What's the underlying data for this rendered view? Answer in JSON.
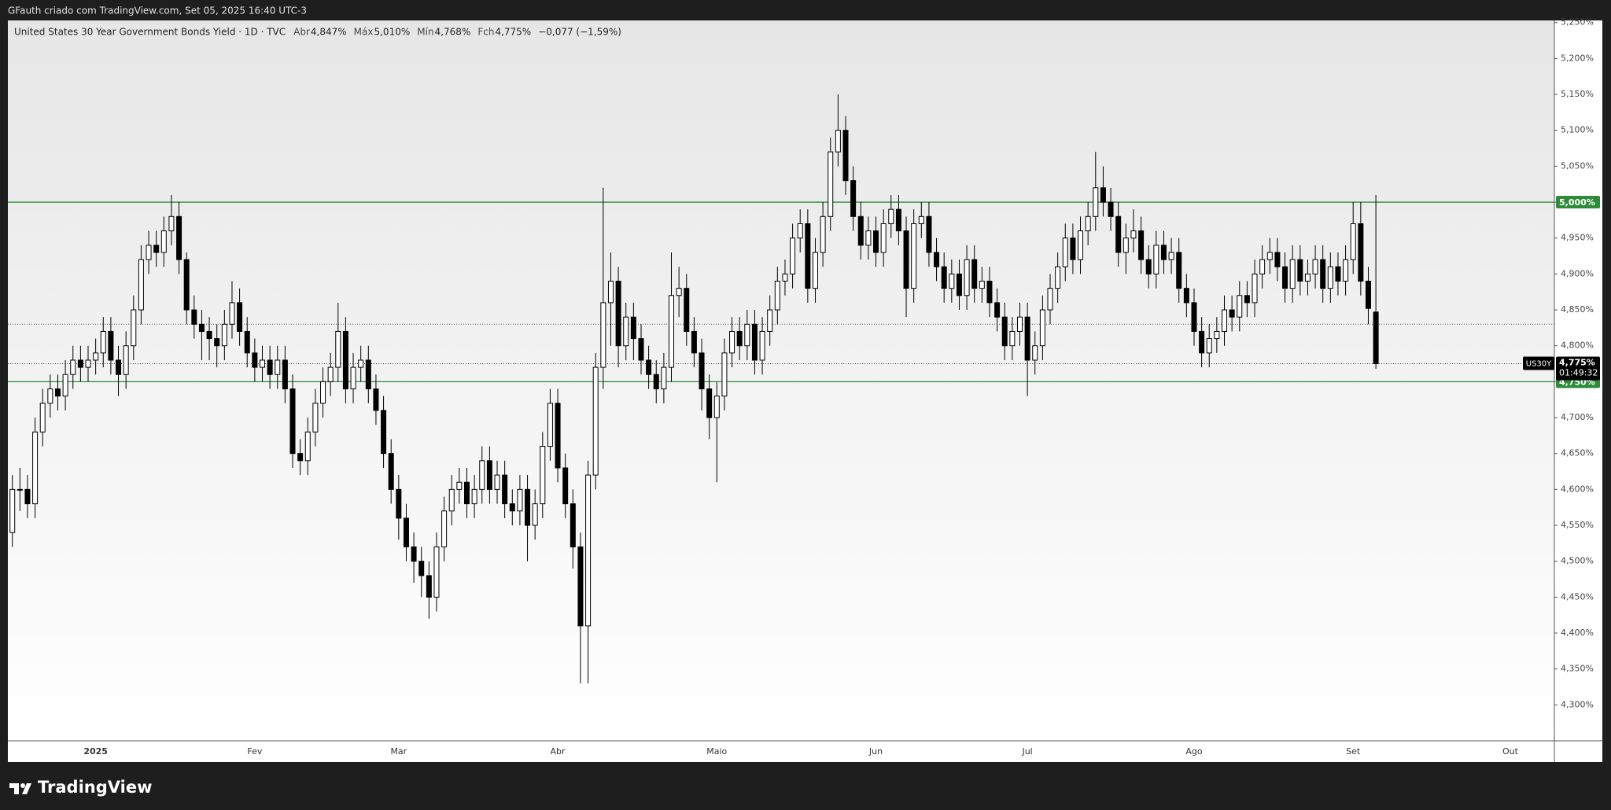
{
  "chart_data": {
    "type": "candlestick",
    "subtitle": "GFauth criado com TradingView.com, Set 05, 2025 16:40 UTC-3",
    "title": "United States 30 Year Government Bonds Yield · 1D · TVC",
    "legend_values": [
      "Abr",
      "4,847%",
      "Máx",
      "5,010%",
      "Mín",
      "4,768%",
      "Fch",
      "4,775%",
      "−0,077 (−1,59%)"
    ],
    "brand": "TradingView",
    "categories": [
      null,
      null,
      null,
      null,
      null,
      null,
      null,
      null,
      null,
      null,
      null,
      "2025",
      null,
      null,
      null,
      null,
      null,
      null,
      null,
      null,
      null,
      null,
      null,
      null,
      null,
      null,
      null,
      null,
      null,
      null,
      null,
      null,
      "Fev",
      null,
      null,
      null,
      null,
      null,
      null,
      null,
      null,
      null,
      null,
      null,
      null,
      null,
      null,
      null,
      null,
      null,
      null,
      "Mar",
      null,
      null,
      null,
      null,
      null,
      null,
      null,
      null,
      null,
      null,
      null,
      null,
      null,
      null,
      null,
      null,
      null,
      null,
      null,
      null,
      "Abr",
      null,
      null,
      null,
      null,
      null,
      null,
      null,
      null,
      null,
      null,
      null,
      null,
      null,
      null,
      null,
      null,
      null,
      null,
      null,
      null,
      "Maio",
      null,
      null,
      null,
      null,
      null,
      null,
      null,
      null,
      null,
      null,
      null,
      null,
      null,
      null,
      null,
      null,
      null,
      null,
      null,
      null,
      "Jun",
      null,
      null,
      null,
      null,
      null,
      null,
      null,
      null,
      null,
      null,
      null,
      null,
      null,
      null,
      null,
      null,
      null,
      null,
      null,
      "Jul",
      null,
      null,
      null,
      null,
      null,
      null,
      null,
      null,
      null,
      null,
      null,
      null,
      null,
      null,
      null,
      null,
      null,
      null,
      null,
      null,
      null,
      "Ago",
      null,
      null,
      null,
      null,
      null,
      null,
      null,
      null,
      null,
      null,
      null,
      null,
      null,
      null,
      null,
      null,
      null,
      null,
      null,
      null,
      "Set",
      null,
      null,
      null
    ],
    "future_x_label": "Out",
    "open": [
      4.54,
      4.6,
      4.6,
      4.58,
      4.68,
      4.72,
      4.74,
      4.73,
      4.76,
      4.78,
      4.77,
      4.78,
      4.79,
      4.82,
      4.78,
      4.76,
      4.8,
      4.85,
      4.92,
      4.94,
      4.93,
      4.96,
      4.98,
      4.92,
      4.85,
      4.83,
      4.82,
      4.81,
      4.8,
      4.83,
      4.86,
      4.82,
      4.79,
      4.77,
      4.78,
      4.76,
      4.78,
      4.74,
      4.65,
      4.64,
      4.68,
      4.72,
      4.75,
      4.77,
      4.82,
      4.74,
      4.77,
      4.78,
      4.74,
      4.71,
      4.65,
      4.6,
      4.56,
      4.52,
      4.5,
      4.48,
      4.45,
      4.52,
      4.57,
      4.6,
      4.61,
      4.58,
      4.6,
      4.64,
      4.6,
      4.62,
      4.58,
      4.57,
      4.6,
      4.55,
      4.58,
      4.66,
      4.72,
      4.63,
      4.58,
      4.52,
      4.41,
      4.62,
      4.77,
      4.86,
      4.89,
      4.8,
      4.84,
      4.81,
      4.78,
      4.76,
      4.74,
      4.77,
      4.87,
      4.88,
      4.82,
      4.79,
      4.74,
      4.7,
      4.73,
      4.79,
      4.82,
      4.8,
      4.83,
      4.78,
      4.82,
      4.85,
      4.89,
      4.9,
      4.95,
      4.97,
      4.88,
      4.93,
      4.98,
      5.07,
      5.1,
      5.03,
      4.98,
      4.94,
      4.96,
      4.93,
      4.97,
      4.99,
      4.96,
      4.88,
      4.97,
      4.98,
      4.93,
      4.91,
      4.88,
      4.9,
      4.87,
      4.92,
      4.88,
      4.89,
      4.86,
      4.84,
      4.8,
      4.82,
      4.84,
      4.78,
      4.8,
      4.85,
      4.88,
      4.91,
      4.95,
      4.92,
      4.96,
      4.98,
      5.02,
      5.0,
      4.98,
      4.93,
      4.95,
      4.96,
      4.92,
      4.9,
      4.94,
      4.92,
      4.93,
      4.88,
      4.86,
      4.82,
      4.79,
      4.81,
      4.82,
      4.85,
      4.84,
      4.87,
      4.86,
      4.9,
      4.92,
      4.93,
      4.91,
      4.88,
      4.92,
      4.89,
      4.9,
      4.92,
      4.88,
      4.91,
      4.89,
      4.92,
      4.97,
      4.89,
      4.847
    ],
    "high": [
      4.62,
      4.63,
      4.62,
      4.7,
      4.74,
      4.76,
      4.76,
      4.78,
      4.8,
      4.8,
      4.8,
      4.81,
      4.84,
      4.84,
      4.8,
      4.82,
      4.87,
      4.94,
      4.96,
      4.96,
      4.98,
      5.01,
      5.0,
      4.93,
      4.87,
      4.85,
      4.84,
      4.83,
      4.85,
      4.89,
      4.88,
      4.84,
      4.81,
      4.8,
      4.8,
      4.8,
      4.8,
      4.76,
      4.67,
      4.7,
      4.74,
      4.77,
      4.79,
      4.86,
      4.84,
      4.79,
      4.8,
      4.8,
      4.76,
      4.73,
      4.67,
      4.62,
      4.58,
      4.54,
      4.52,
      4.5,
      4.54,
      4.59,
      4.62,
      4.63,
      4.63,
      4.62,
      4.66,
      4.66,
      4.64,
      4.64,
      4.6,
      4.62,
      4.62,
      4.6,
      4.68,
      4.74,
      4.74,
      4.65,
      4.6,
      4.54,
      4.64,
      4.79,
      5.02,
      4.93,
      4.91,
      4.86,
      4.86,
      4.83,
      4.8,
      4.78,
      4.79,
      4.93,
      4.91,
      4.9,
      4.84,
      4.81,
      4.76,
      4.75,
      4.81,
      4.84,
      4.84,
      4.85,
      4.85,
      4.84,
      4.87,
      4.91,
      4.92,
      4.97,
      4.99,
      4.99,
      4.95,
      5.0,
      5.09,
      5.15,
      5.12,
      5.05,
      5.0,
      4.98,
      4.98,
      4.99,
      5.01,
      5.01,
      4.98,
      4.99,
      5.0,
      5.0,
      4.95,
      4.93,
      4.92,
      4.92,
      4.94,
      4.94,
      4.91,
      4.91,
      4.88,
      4.86,
      4.84,
      4.86,
      4.86,
      4.82,
      4.87,
      4.9,
      4.93,
      4.97,
      4.97,
      4.98,
      5.0,
      5.07,
      5.05,
      5.02,
      5.0,
      4.97,
      4.99,
      4.98,
      4.94,
      4.96,
      4.96,
      4.95,
      4.95,
      4.9,
      4.88,
      4.84,
      4.83,
      4.84,
      4.87,
      4.87,
      4.89,
      4.89,
      4.92,
      4.94,
      4.95,
      4.95,
      4.93,
      4.94,
      4.94,
      4.92,
      4.94,
      4.94,
      4.93,
      4.93,
      4.94,
      5.0,
      5.0,
      4.91,
      5.01
    ],
    "low": [
      4.52,
      4.57,
      4.56,
      4.56,
      4.66,
      4.7,
      4.71,
      4.71,
      4.74,
      4.75,
      4.75,
      4.76,
      4.77,
      4.76,
      4.73,
      4.74,
      4.78,
      4.83,
      4.9,
      4.91,
      4.91,
      4.94,
      4.9,
      4.83,
      4.81,
      4.78,
      4.78,
      4.77,
      4.78,
      4.81,
      4.8,
      4.77,
      4.75,
      4.75,
      4.74,
      4.74,
      4.72,
      4.63,
      4.62,
      4.62,
      4.66,
      4.7,
      4.73,
      4.75,
      4.72,
      4.72,
      4.75,
      4.72,
      4.69,
      4.63,
      4.58,
      4.53,
      4.5,
      4.47,
      4.45,
      4.42,
      4.43,
      4.5,
      4.55,
      4.58,
      4.56,
      4.56,
      4.58,
      4.58,
      4.58,
      4.56,
      4.55,
      4.55,
      4.5,
      4.53,
      4.56,
      4.64,
      4.61,
      4.56,
      4.49,
      4.33,
      4.33,
      4.6,
      4.74,
      4.8,
      4.77,
      4.78,
      4.78,
      4.76,
      4.74,
      4.72,
      4.72,
      4.75,
      4.84,
      4.8,
      4.77,
      4.71,
      4.67,
      4.61,
      4.71,
      4.77,
      4.78,
      4.78,
      4.76,
      4.76,
      4.8,
      4.83,
      4.87,
      4.88,
      4.93,
      4.86,
      4.86,
      4.91,
      4.96,
      5.05,
      5.01,
      4.96,
      4.92,
      4.92,
      4.91,
      4.91,
      4.95,
      4.94,
      4.84,
      4.86,
      4.95,
      4.91,
      4.89,
      4.86,
      4.86,
      4.85,
      4.85,
      4.86,
      4.86,
      4.84,
      4.82,
      4.78,
      4.78,
      4.8,
      4.73,
      4.76,
      4.78,
      4.83,
      4.86,
      4.89,
      4.9,
      4.9,
      4.94,
      4.96,
      4.98,
      4.96,
      4.91,
      4.9,
      4.93,
      4.9,
      4.88,
      4.88,
      4.9,
      4.9,
      4.86,
      4.84,
      4.8,
      4.77,
      4.77,
      4.79,
      4.8,
      4.82,
      4.82,
      4.84,
      4.84,
      4.88,
      4.9,
      4.89,
      4.86,
      4.86,
      4.87,
      4.87,
      4.88,
      4.86,
      4.86,
      4.87,
      4.87,
      4.9,
      4.87,
      4.83,
      4.768
    ],
    "close": [
      4.6,
      4.6,
      4.58,
      4.68,
      4.72,
      4.74,
      4.73,
      4.76,
      4.78,
      4.77,
      4.78,
      4.79,
      4.82,
      4.78,
      4.76,
      4.8,
      4.85,
      4.92,
      4.94,
      4.93,
      4.96,
      4.98,
      4.92,
      4.85,
      4.83,
      4.82,
      4.81,
      4.8,
      4.83,
      4.86,
      4.82,
      4.79,
      4.77,
      4.78,
      4.76,
      4.78,
      4.74,
      4.65,
      4.64,
      4.68,
      4.72,
      4.75,
      4.77,
      4.82,
      4.74,
      4.77,
      4.78,
      4.74,
      4.71,
      4.65,
      4.6,
      4.56,
      4.52,
      4.5,
      4.48,
      4.45,
      4.52,
      4.57,
      4.6,
      4.61,
      4.58,
      4.6,
      4.64,
      4.6,
      4.62,
      4.58,
      4.57,
      4.6,
      4.55,
      4.58,
      4.66,
      4.72,
      4.63,
      4.58,
      4.52,
      4.41,
      4.62,
      4.77,
      4.86,
      4.89,
      4.8,
      4.84,
      4.81,
      4.78,
      4.76,
      4.74,
      4.77,
      4.87,
      4.88,
      4.82,
      4.79,
      4.74,
      4.7,
      4.73,
      4.79,
      4.82,
      4.8,
      4.83,
      4.78,
      4.82,
      4.85,
      4.89,
      4.9,
      4.95,
      4.97,
      4.88,
      4.93,
      4.98,
      5.07,
      5.1,
      5.03,
      4.98,
      4.94,
      4.96,
      4.93,
      4.97,
      4.99,
      4.96,
      4.88,
      4.97,
      4.98,
      4.93,
      4.91,
      4.88,
      4.9,
      4.87,
      4.92,
      4.88,
      4.89,
      4.86,
      4.84,
      4.8,
      4.82,
      4.84,
      4.78,
      4.8,
      4.85,
      4.88,
      4.91,
      4.95,
      4.92,
      4.96,
      4.98,
      5.02,
      5.0,
      4.98,
      4.93,
      4.95,
      4.96,
      4.92,
      4.9,
      4.94,
      4.92,
      4.93,
      4.88,
      4.86,
      4.82,
      4.79,
      4.81,
      4.82,
      4.85,
      4.84,
      4.87,
      4.86,
      4.9,
      4.92,
      4.93,
      4.91,
      4.88,
      4.92,
      4.89,
      4.9,
      4.92,
      4.88,
      4.91,
      4.89,
      4.92,
      4.97,
      4.89,
      4.852,
      4.775
    ],
    "up_color": "#ffffff",
    "down_color": "#000000",
    "wick_color": "#000000",
    "ylim": [
      4.25,
      5.253
    ],
    "yticks": [
      {
        "value": 4.3,
        "label": "4,300%"
      },
      {
        "value": 4.35,
        "label": "4,350%"
      },
      {
        "value": 4.4,
        "label": "4,400%"
      },
      {
        "value": 4.45,
        "label": "4,450%"
      },
      {
        "value": 4.5,
        "label": "4,500%"
      },
      {
        "value": 4.55,
        "label": "4,550%"
      },
      {
        "value": 4.6,
        "label": "4,600%"
      },
      {
        "value": 4.65,
        "label": "4,650%"
      },
      {
        "value": 4.7,
        "label": "4,700%"
      },
      {
        "value": 4.75,
        "label": "4,750%"
      },
      {
        "value": 4.8,
        "label": "4,800%"
      },
      {
        "value": 4.85,
        "label": "4,850%"
      },
      {
        "value": 4.9,
        "label": "4,900%"
      },
      {
        "value": 4.95,
        "label": "4,950%"
      },
      {
        "value": 5.0,
        "label": "5,000%"
      },
      {
        "value": 5.05,
        "label": "5,050%"
      },
      {
        "value": 5.1,
        "label": "5,100%"
      },
      {
        "value": 5.15,
        "label": "5,150%"
      },
      {
        "value": 5.2,
        "label": "5,200%"
      },
      {
        "value": 5.25,
        "label": "5,250%"
      }
    ],
    "grid": false,
    "levels": [
      {
        "value": 5.0,
        "label": "5,000%",
        "color": "#2e8b3a"
      },
      {
        "value": 4.75,
        "label": "4,750%",
        "color": "#2e8b3a"
      }
    ],
    "dotted_lines": [
      4.83
    ],
    "last_price": {
      "value": 4.775,
      "label": "4,775%",
      "countdown": "01:49:32",
      "symbol": "US30Y"
    }
  }
}
